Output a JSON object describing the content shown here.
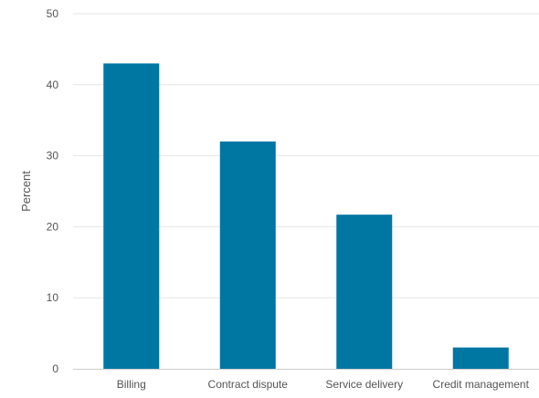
{
  "chart_data": {
    "type": "bar",
    "title": "",
    "xlabel": "",
    "ylabel": "Percent",
    "categories": [
      "Billing",
      "Contract dispute",
      "Service delivery",
      "Credit management"
    ],
    "values": [
      43,
      32,
      21.7,
      3
    ],
    "ylim": [
      0,
      50
    ],
    "yticks": [
      0,
      10,
      20,
      30,
      40,
      50
    ],
    "grid": true,
    "legend": "none",
    "colors": {
      "bar": "#0077a3",
      "grid": "#e6e6e6",
      "axis": "#cccccc",
      "text": "#555555"
    }
  }
}
